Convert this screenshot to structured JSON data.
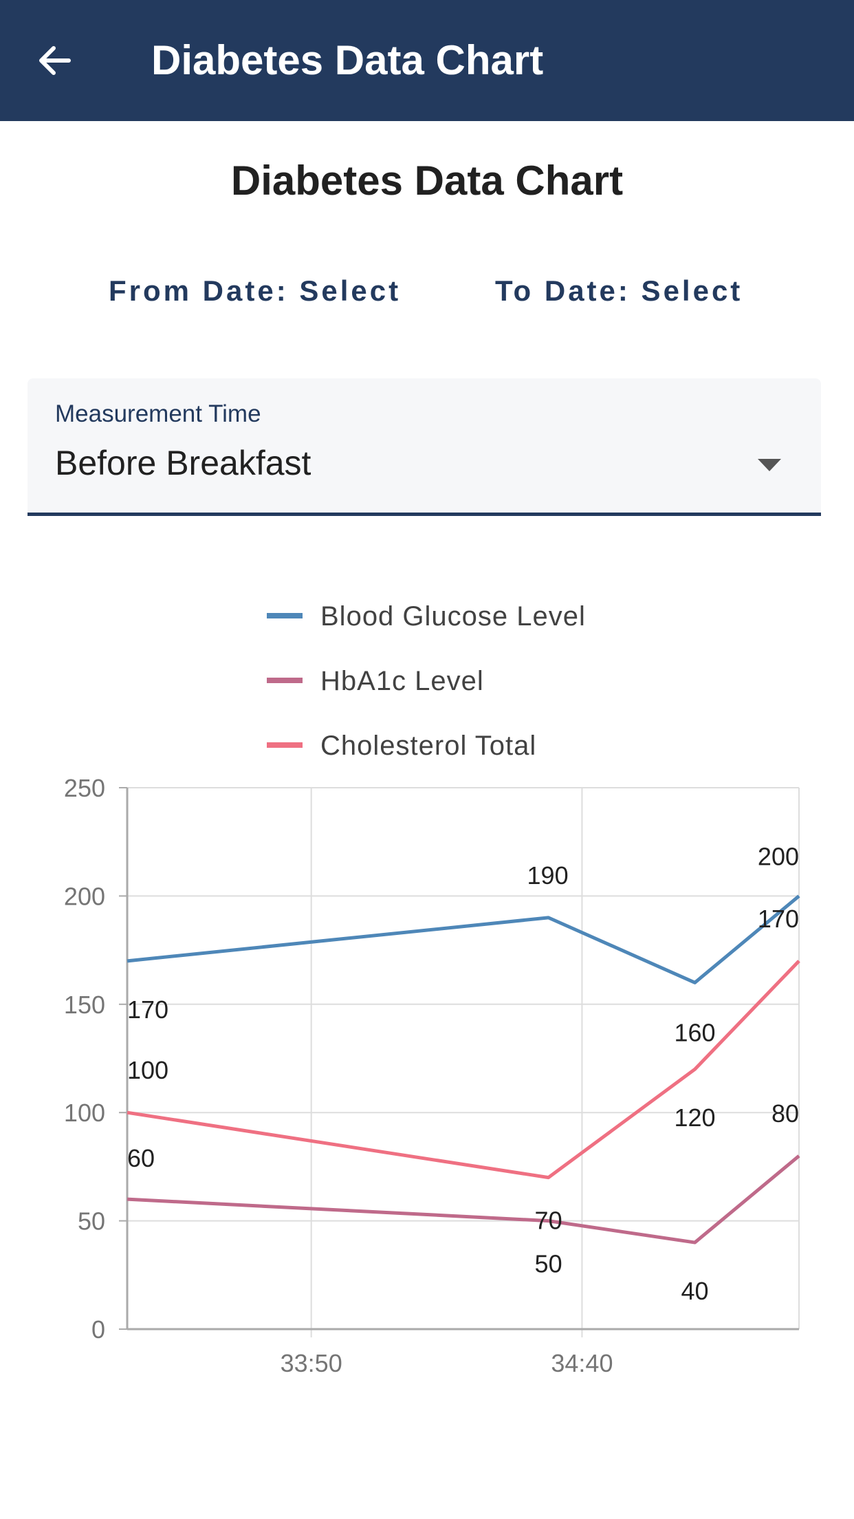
{
  "appbar": {
    "title": "Diabetes Data Chart",
    "back_icon": "arrow-left-icon",
    "background": "#233a5e"
  },
  "page": {
    "title": "Diabetes Data Chart"
  },
  "date_range": {
    "from_label": "From Date: Select",
    "to_label": "To Date: Select"
  },
  "measurement_time": {
    "label": "Measurement Time",
    "value": "Before Breakfast",
    "arrow_icon": "dropdown-arrow-icon"
  },
  "chart_data": {
    "type": "line",
    "x_categories": [
      "33:50",
      "34:40"
    ],
    "yticks": [
      "0",
      "50",
      "100",
      "150",
      "200",
      "250"
    ],
    "ylim": [
      0,
      250
    ],
    "grid": true,
    "legend_position": "top",
    "series": [
      {
        "name": "Blood Glucose Level",
        "color": "#4e87b8",
        "points": [
          [
            0,
            170
          ],
          [
            0.627,
            190
          ],
          [
            0.845,
            160
          ],
          [
            1.0,
            200
          ]
        ],
        "labels": [
          "170",
          "190",
          "160",
          "200"
        ]
      },
      {
        "name": "HbA1c Level",
        "color": "#bf6a8a",
        "points": [
          [
            0,
            60
          ],
          [
            0.627,
            50
          ],
          [
            0.845,
            40
          ],
          [
            1.0,
            80
          ]
        ],
        "labels": [
          "60",
          "50",
          "40",
          "80"
        ]
      },
      {
        "name": "Cholesterol Total",
        "color": "#ef7082",
        "points": [
          [
            0,
            100
          ],
          [
            0.627,
            70
          ],
          [
            0.845,
            120
          ],
          [
            1.0,
            170
          ]
        ],
        "labels": [
          "100",
          "70",
          "120",
          "170"
        ]
      }
    ]
  }
}
